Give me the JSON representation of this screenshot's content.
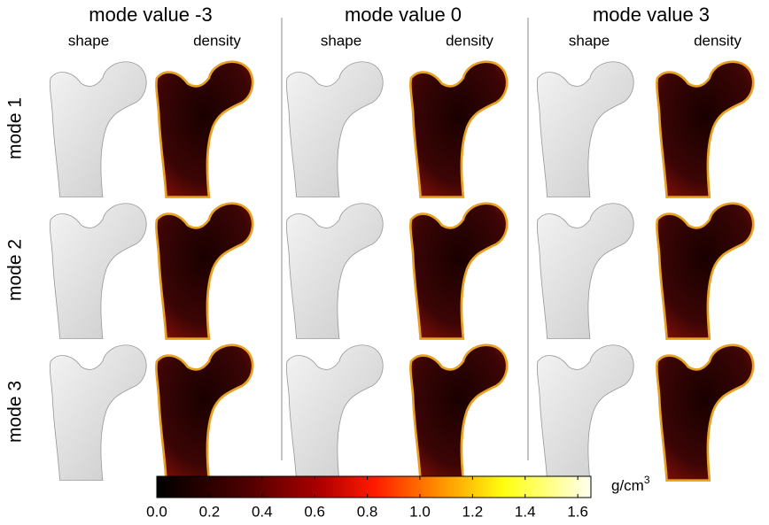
{
  "columns": [
    {
      "title": "mode value -3",
      "subtitles": [
        "shape",
        "density"
      ]
    },
    {
      "title": "mode value 0",
      "subtitles": [
        "shape",
        "density"
      ]
    },
    {
      "title": "mode value 3",
      "subtitles": [
        "shape",
        "density"
      ]
    }
  ],
  "rows": [
    "mode 1",
    "mode 2",
    "mode 3"
  ],
  "colorbar": {
    "lim": [
      0,
      1.65
    ],
    "ticks": [
      {
        "value": 0,
        "label": "0.0"
      },
      {
        "value": 0.2,
        "label": "0.2"
      },
      {
        "value": 0.4,
        "label": "0.4"
      },
      {
        "value": 0.6,
        "label": "0.6"
      },
      {
        "value": 0.8,
        "label": "0.8"
      },
      {
        "value": 1.0,
        "label": "1.0"
      },
      {
        "value": 1.2,
        "label": "1.2"
      },
      {
        "value": 1.4,
        "label": "1.4"
      },
      {
        "value": 1.6,
        "label": "1.6"
      }
    ],
    "unit": {
      "text": "g/cm",
      "superscript": "3"
    }
  }
}
